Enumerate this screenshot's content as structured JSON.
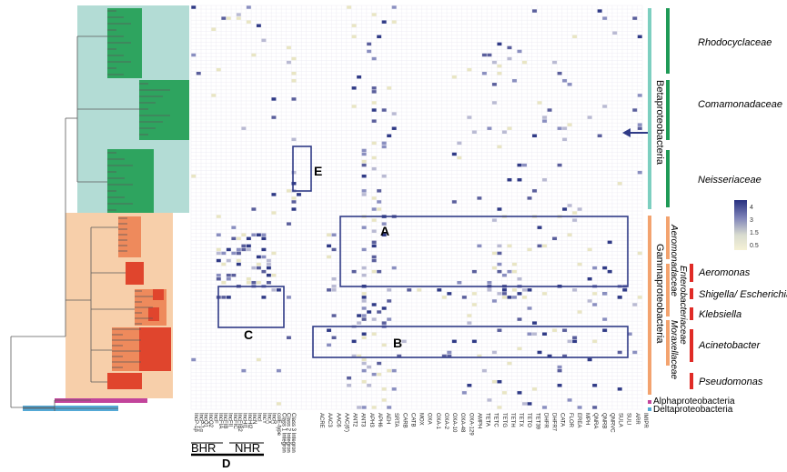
{
  "colors": {
    "beta_bg": "#b3dcd5",
    "gamma_bg": "#f7cfaa",
    "green_block": "#2ea45f",
    "red_block": "#e0452d",
    "orange_block": "#ee8a5c",
    "alpha_bar": "#c2449b",
    "delta_bar": "#54a9d6",
    "box_outline": "#2f3a86",
    "grid_line": "#e6e4ee",
    "cell_dark": "#2f3a86",
    "cell_mid": "#8a8fc0",
    "cell_light": "#e9e6c3",
    "family_bar": "#1f9a56",
    "genus_bar": "#e02b26",
    "class_beta_bar": "#7dcfc0",
    "class_gamma_bar": "#f3a36f"
  },
  "columns": [
    "IncP-1 β",
    "IncP-1 α",
    "IncQ1",
    "IncQ2",
    "IncF",
    "IncFIA",
    "IncFIB",
    "IncFII",
    "IncFIC",
    "IncFIB2",
    "IncHI1",
    "IncHI2",
    "IncH",
    "IncN",
    "IncI",
    "oriT",
    "IncY",
    "IncX",
    "IncR",
    "colE-type",
    "Class 1 Integron",
    "Class 2 Integron",
    "Class 3 Integron",
    "ACRE",
    "AAC3",
    "AAC6",
    "AAC(6')",
    "ANT2",
    "ANT3",
    "APH3",
    "APH6",
    "AEH",
    "SRTA",
    "CARB",
    "CATA",
    "MOX",
    "OXA",
    "OXA-1",
    "OXA-2",
    "OXA-10",
    "OXA-48",
    "OXA-129",
    "AMPH",
    "TETA",
    "TETC",
    "TETG",
    "TETH",
    "TETX",
    "TETO",
    "TET39",
    "DHFR",
    "DHFR7",
    "CATB",
    "FLOR",
    "EREA",
    "MPH",
    "QNRA",
    "QNRB",
    "QNRVC",
    "SULA",
    "SULI",
    "ARR",
    "IMIPR",
    "EMRC"
  ],
  "column_labels_shown": [
    "IncP-1β",
    "IncP-1α",
    "IncQ1",
    "IncQ2",
    "IncF",
    "IncFIA",
    "IncFIB",
    "IncFII",
    "IncFIC",
    "IncFIB2",
    "IncHI1",
    "IncHI2",
    "IncN",
    "IncI",
    "IncY",
    "IncX",
    "IncR",
    "colE-type",
    "Class 1 Integron",
    "Class 2 Integron",
    "Class 3 Integron",
    "ACRE",
    "AAC3",
    "AAC6",
    "AAC(6')",
    "ANT2",
    "ANT3",
    "APH3",
    "APH6",
    "AEH",
    "SRTA",
    "CARB",
    "CATB",
    "MOX",
    "OXA",
    "OXA-1",
    "OXA-2",
    "OXA-10",
    "OXA-48",
    "OXA-129",
    "AMPH",
    "TETA",
    "TETC",
    "TETG",
    "TETH",
    "TETX",
    "TETO",
    "TET39",
    "DHFR",
    "DHFR7",
    "CATA",
    "FLOR",
    "EREA",
    "MPH",
    "QNRA",
    "QNRB",
    "QNRVC",
    "SULA",
    "SULI",
    "ARR",
    "IMIPR"
  ],
  "box_labels": {
    "A": "A",
    "B": "B",
    "C": "C",
    "D": "D",
    "E": "E"
  },
  "group_labels": {
    "bhr": "BHR",
    "nhr": "NHR"
  },
  "classes": {
    "beta": "Betaproteobacteria",
    "gamma": "Gammaproteobacteria",
    "alpha": "Alphaproteobacteria",
    "delta": "Deltaproteobacteria"
  },
  "families": {
    "rhodocyclaceae": "Rhodocyclaceae",
    "comamonadaceae": "Comamonadaceae",
    "neisseriaceae": "Neisseriaceae",
    "aeromonadaceae": "Aeromonadaceae",
    "enterobacteriaceae": "Enterobacteriaceae",
    "moraxellaceae": "Moraxellaceae"
  },
  "genera": {
    "aeromonas": "Aeromonas",
    "shigella": "Shigella/ Escherichia",
    "klebsiella": "Klebsiella",
    "acinetobacter": "Acinetobacter",
    "pseudomonas": "Pseudomonas"
  },
  "legend": {
    "ticks": [
      "4",
      "3",
      "1.5",
      "0.5"
    ]
  }
}
